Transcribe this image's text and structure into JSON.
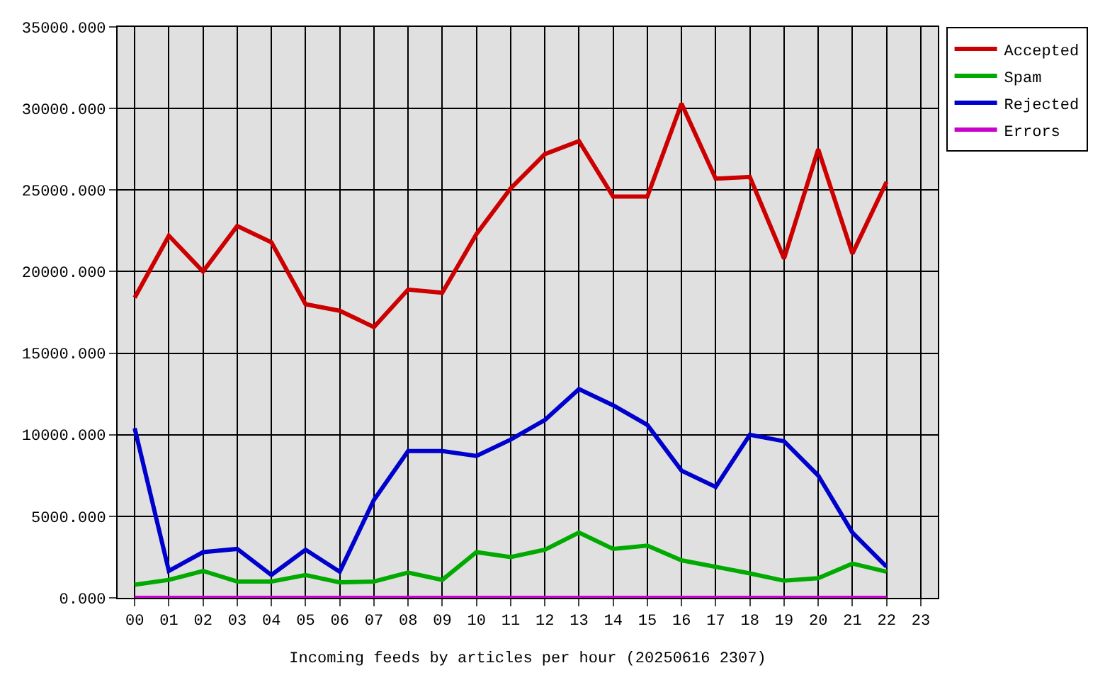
{
  "chart_data": {
    "type": "line",
    "xlabel": "Incoming feeds by articles per hour (20250616 2307)",
    "categories": [
      "00",
      "01",
      "02",
      "03",
      "04",
      "05",
      "06",
      "07",
      "08",
      "09",
      "10",
      "11",
      "12",
      "13",
      "14",
      "15",
      "16",
      "17",
      "18",
      "19",
      "20",
      "21",
      "22",
      "23"
    ],
    "series": [
      {
        "name": "Accepted",
        "color": "#cc0000",
        "values": [
          18400,
          22200,
          20000,
          22800,
          21800,
          18000,
          17600,
          16600,
          18900,
          18700,
          22300,
          25100,
          27200,
          28000,
          24600,
          24600,
          30300,
          25700,
          25800,
          20800,
          27500,
          21100,
          25500,
          null
        ]
      },
      {
        "name": "Spam",
        "color": "#00aa00",
        "values": [
          800,
          1100,
          1650,
          1000,
          1000,
          1400,
          950,
          1000,
          1550,
          1100,
          2800,
          2500,
          2950,
          4000,
          3000,
          3200,
          2300,
          1900,
          1500,
          1050,
          1200,
          2100,
          1600,
          null
        ]
      },
      {
        "name": "Rejected",
        "color": "#0000cc",
        "values": [
          10400,
          1650,
          2800,
          3000,
          1400,
          2950,
          1600,
          6000,
          9000,
          9000,
          8700,
          9700,
          10900,
          12800,
          11800,
          10600,
          7800,
          6800,
          10000,
          9600,
          7500,
          4000,
          1900,
          null
        ]
      },
      {
        "name": "Errors",
        "color": "#cc00cc",
        "values": [
          0,
          0,
          0,
          0,
          0,
          0,
          0,
          0,
          0,
          0,
          0,
          0,
          0,
          0,
          0,
          0,
          0,
          0,
          0,
          0,
          0,
          0,
          0,
          null
        ]
      }
    ],
    "ylim": [
      0,
      35000
    ],
    "yticks": [
      {
        "value": 0,
        "label": "0.000"
      },
      {
        "value": 5000,
        "label": "5000.000"
      },
      {
        "value": 10000,
        "label": "10000.000"
      },
      {
        "value": 15000,
        "label": "15000.000"
      },
      {
        "value": 20000,
        "label": "20000.000"
      },
      {
        "value": 25000,
        "label": "25000.000"
      },
      {
        "value": 30000,
        "label": "30000.000"
      },
      {
        "value": 35000,
        "label": "35000.000"
      }
    ],
    "grid": true,
    "legend": "top right",
    "line_style": "solid"
  }
}
